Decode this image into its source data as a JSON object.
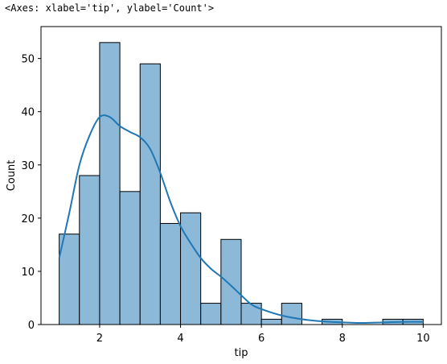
{
  "header": {
    "repr": "<Axes: xlabel='tip', ylabel='Count'>"
  },
  "chart_data": {
    "type": "bar",
    "subtype": "histogram_with_kde",
    "xlabel": "tip",
    "ylabel": "Count",
    "xlim": [
      0.55,
      10.45
    ],
    "ylim": [
      0,
      56
    ],
    "x_ticks": [
      2,
      4,
      6,
      8,
      10
    ],
    "y_ticks": [
      0,
      10,
      20,
      30,
      40,
      50
    ],
    "bin_edges": [
      1.0,
      1.5,
      2.0,
      2.5,
      3.0,
      3.5,
      4.0,
      4.5,
      5.0,
      5.5,
      6.0,
      6.5,
      7.0,
      7.5,
      8.0,
      8.5,
      9.0,
      9.5,
      10.0
    ],
    "counts": [
      17,
      28,
      53,
      25,
      49,
      19,
      21,
      4,
      16,
      4,
      1,
      4,
      0,
      1,
      0,
      0,
      1,
      1
    ],
    "kde": {
      "x": [
        1.0,
        1.25,
        1.5,
        1.75,
        2.0,
        2.25,
        2.5,
        2.75,
        3.0,
        3.25,
        3.5,
        3.75,
        4.0,
        4.25,
        4.5,
        4.75,
        5.0,
        5.25,
        5.5,
        5.75,
        6.0,
        6.5,
        7.0,
        7.5,
        8.0,
        8.5,
        9.0,
        9.5,
        10.0
      ],
      "y": [
        12.5,
        21,
        30,
        35.5,
        39,
        39,
        37.3,
        36.2,
        35.2,
        33,
        28.5,
        23,
        18.5,
        15.3,
        12.5,
        10.5,
        9,
        7.3,
        5.5,
        3.8,
        2.9,
        1.7,
        1.0,
        0.6,
        0.4,
        0.3,
        0.4,
        0.5,
        0.5
      ]
    },
    "colors": {
      "bar_fill": "#8db9d9",
      "bar_edge": "#000000",
      "kde_line": "#1f77b4"
    },
    "grid": false,
    "legend": "none"
  }
}
